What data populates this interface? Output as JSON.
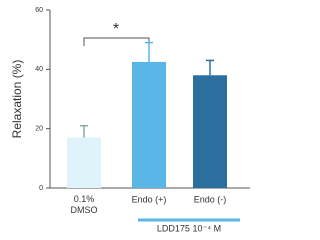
{
  "chart_data": {
    "type": "bar",
    "y_label": "Relaxation (%)",
    "categories": [
      "0.1%\nDMSO",
      "Endo (+)",
      "Endo (-)"
    ],
    "values": [
      17,
      42.5,
      38
    ],
    "errors": [
      4,
      6.5,
      5
    ],
    "colors": [
      "#dff3fa",
      "#5ab6e6",
      "#2b6f9f"
    ],
    "ylim": [
      0,
      60
    ],
    "yticks": [
      0,
      20,
      40,
      60
    ],
    "annotation": "*",
    "group_label": "LDD175 10⁻⁴ M"
  }
}
